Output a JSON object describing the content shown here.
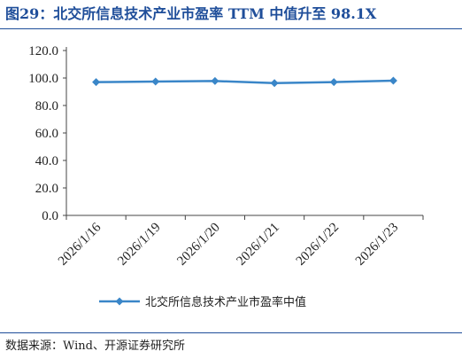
{
  "title": "图29：北交所信息技术产业市盈率 TTM 中值升至 98.1X",
  "source": "数据来源：Wind、开源证券研究所",
  "colors": {
    "title": "#1f4e9a",
    "series": "#3a86c8",
    "axis": "#444444"
  },
  "chart_data": {
    "type": "line",
    "categories": [
      "2026/1/16",
      "2026/1/19",
      "2026/1/20",
      "2026/1/21",
      "2026/1/22",
      "2026/1/23"
    ],
    "series": [
      {
        "name": "北交所信息技术产业市盈率中值",
        "values": [
          97.0,
          97.4,
          97.8,
          96.3,
          97.0,
          98.1
        ],
        "marker": "diamond"
      }
    ],
    "yticks": [
      "0.0",
      "20.0",
      "40.0",
      "60.0",
      "80.0",
      "100.0",
      "120.0"
    ],
    "ylim": [
      0,
      120
    ],
    "grid": false,
    "legend": "bottom-center"
  }
}
